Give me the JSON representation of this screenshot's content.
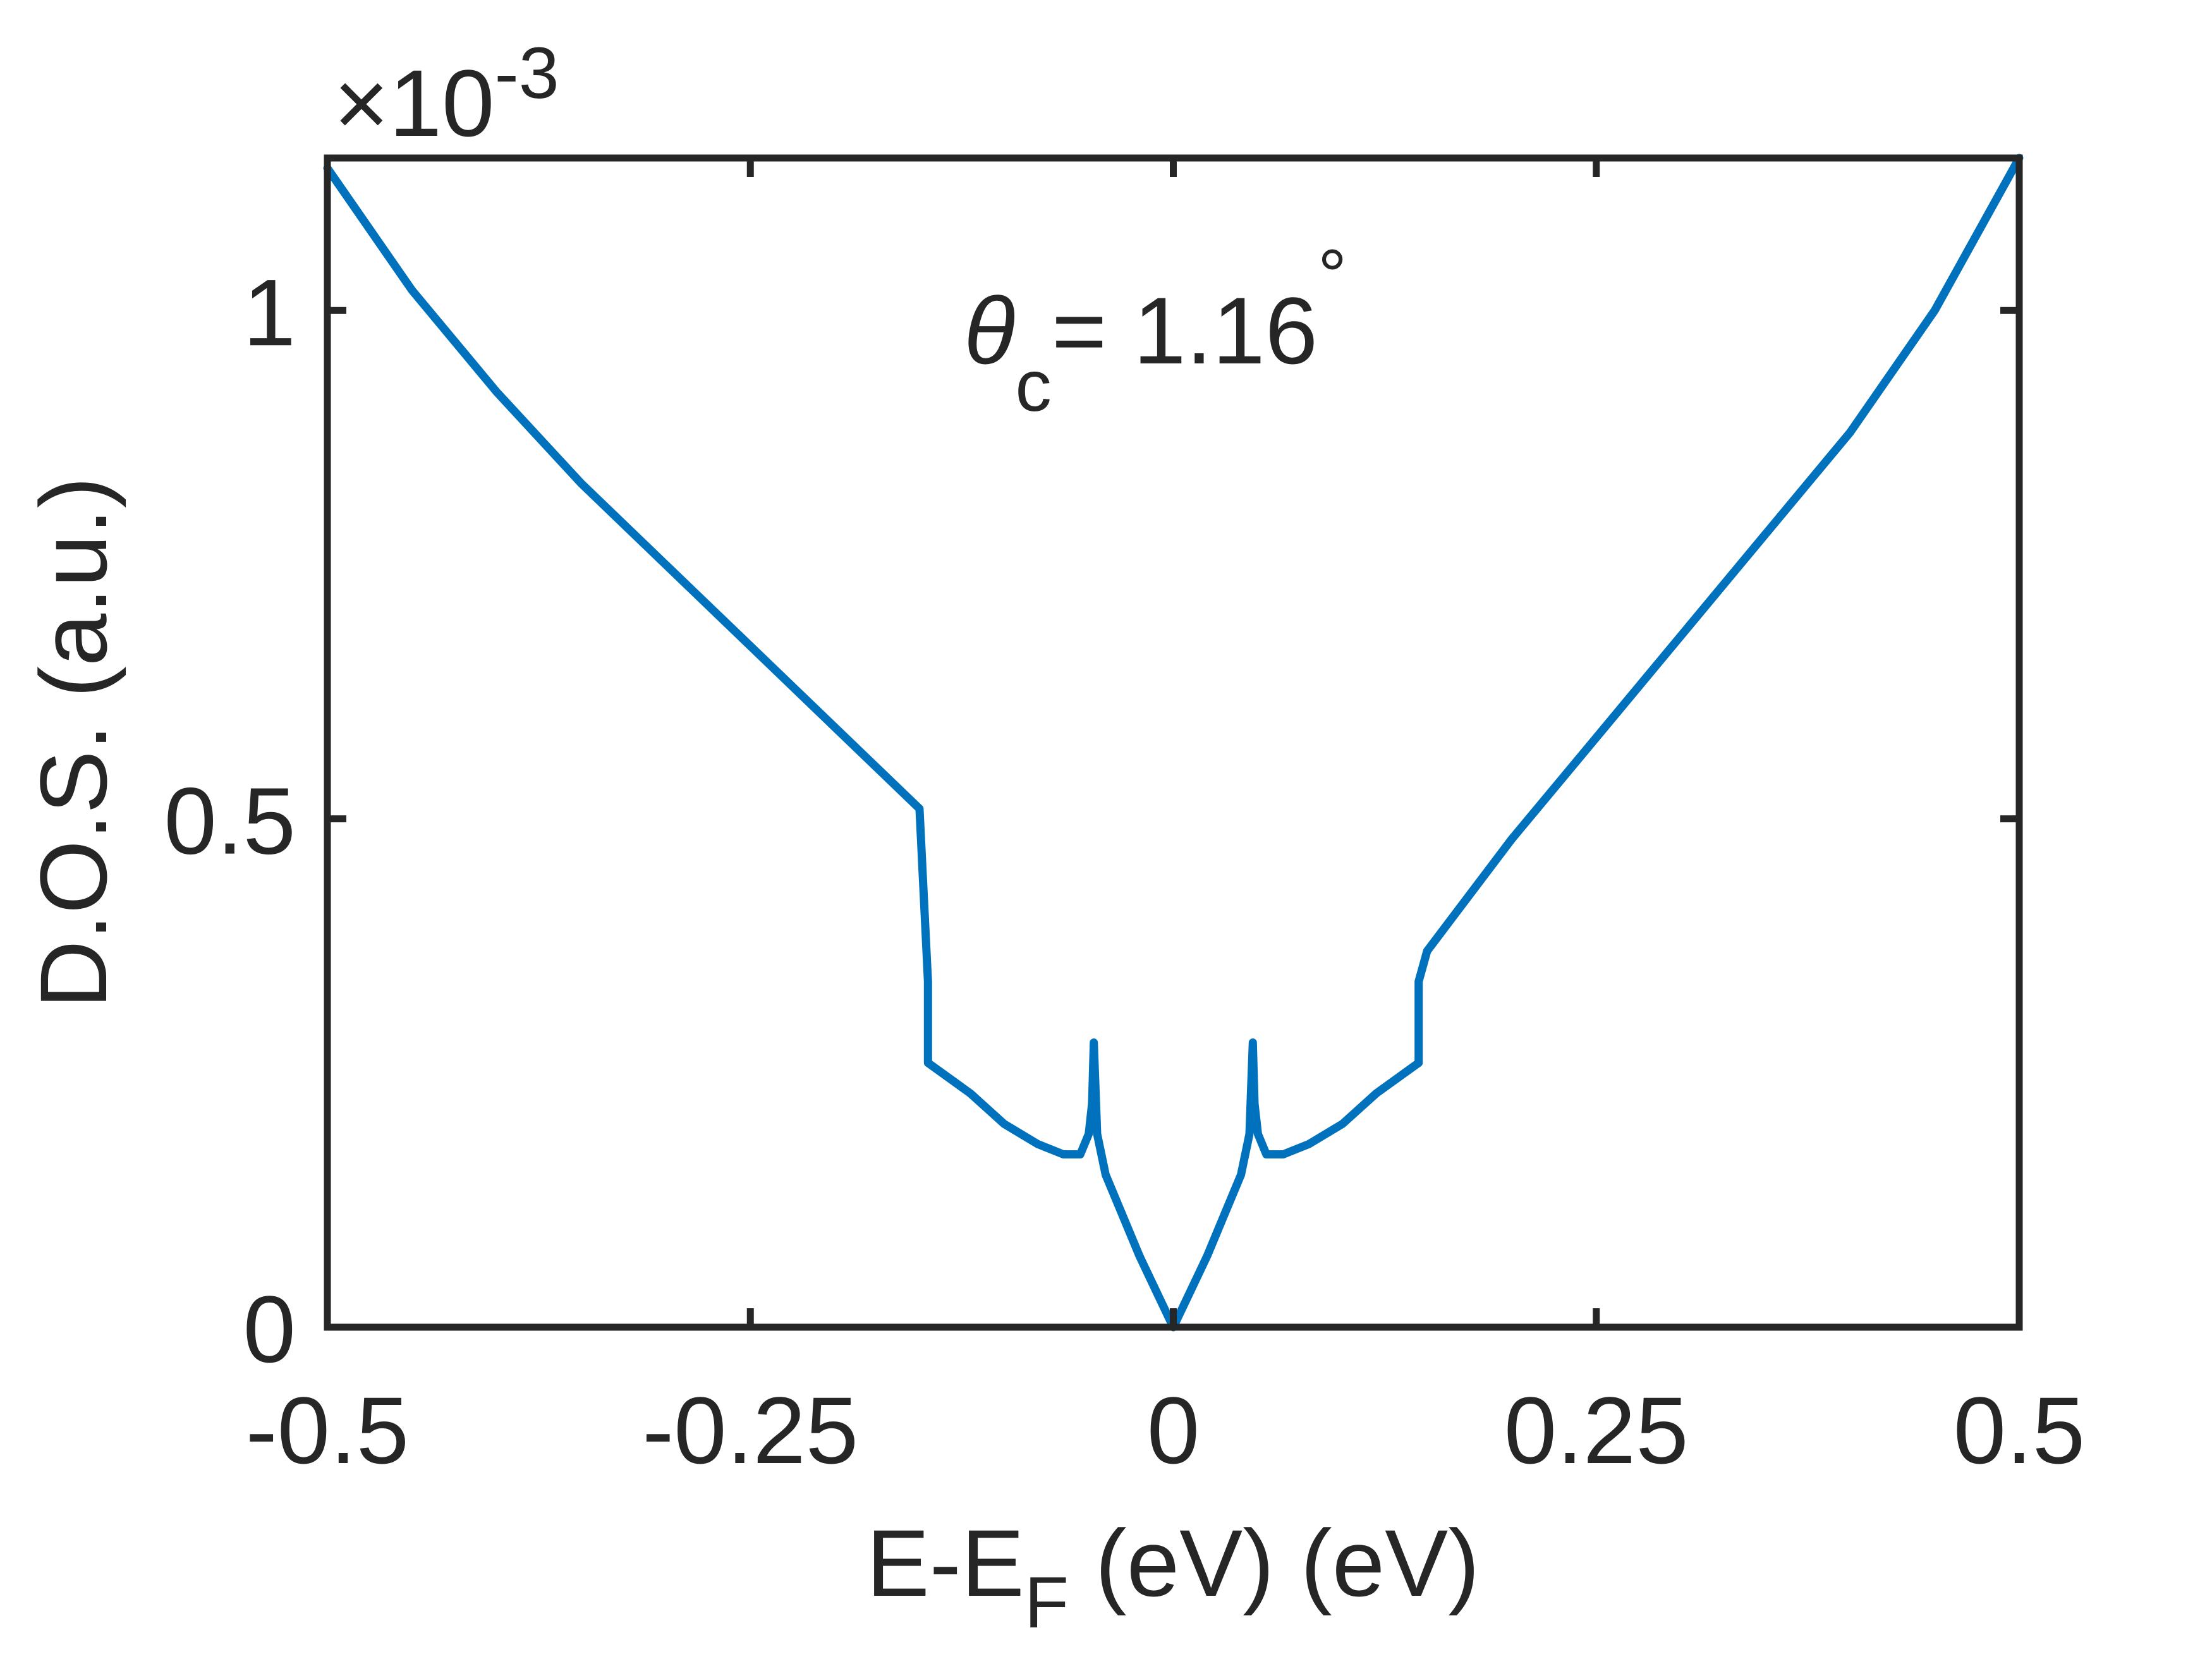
{
  "chart_data": {
    "type": "line",
    "xlabel": "E-E",
    "xlabel_sub": "F",
    "xlabel_tail": " (eV) (eV)",
    "ylabel": "D.O.S. (a.u.)",
    "exponent": {
      "times": "×",
      "base": "10",
      "power": "-3"
    },
    "annotation": {
      "symbol": "θ",
      "sub": "c",
      "text": "= 1.16",
      "sup": "°"
    },
    "xlim": [
      -0.5,
      0.5
    ],
    "ylim": [
      0,
      1.15
    ],
    "x_ticks": [
      -0.5,
      -0.25,
      0,
      0.25,
      0.5
    ],
    "x_tick_labels": [
      "-0.5",
      "-0.25",
      "0",
      "0.25",
      "0.5"
    ],
    "y_ticks": [
      0,
      0.5,
      1
    ],
    "y_tick_labels": [
      "0",
      "0.5",
      "1"
    ],
    "grid": false,
    "series": [
      {
        "color": "#0072BD",
        "x": [
          -0.5,
          -0.45,
          -0.4,
          -0.35,
          -0.3,
          -0.25,
          -0.2,
          -0.15,
          -0.145,
          -0.145,
          -0.12,
          -0.1,
          -0.08,
          -0.065,
          -0.055,
          -0.05,
          -0.048,
          -0.047,
          -0.045,
          -0.04,
          -0.03,
          -0.02,
          -0.01,
          0,
          0.01,
          0.02,
          0.03,
          0.04,
          0.045,
          0.047,
          0.048,
          0.05,
          0.055,
          0.065,
          0.08,
          0.1,
          0.12,
          0.145,
          0.145,
          0.15,
          0.2,
          0.25,
          0.3,
          0.35,
          0.4,
          0.45,
          0.5
        ],
        "y": [
          1.14,
          1.02,
          0.92,
          0.83,
          0.75,
          0.67,
          0.59,
          0.51,
          0.34,
          0.26,
          0.23,
          0.2,
          0.18,
          0.17,
          0.17,
          0.19,
          0.22,
          0.28,
          0.19,
          0.15,
          0.11,
          0.07,
          0.035,
          0.0,
          0.035,
          0.07,
          0.11,
          0.15,
          0.19,
          0.28,
          0.22,
          0.19,
          0.17,
          0.17,
          0.18,
          0.2,
          0.23,
          0.26,
          0.34,
          0.37,
          0.48,
          0.58,
          0.68,
          0.78,
          0.88,
          1.0,
          1.15
        ]
      }
    ]
  }
}
